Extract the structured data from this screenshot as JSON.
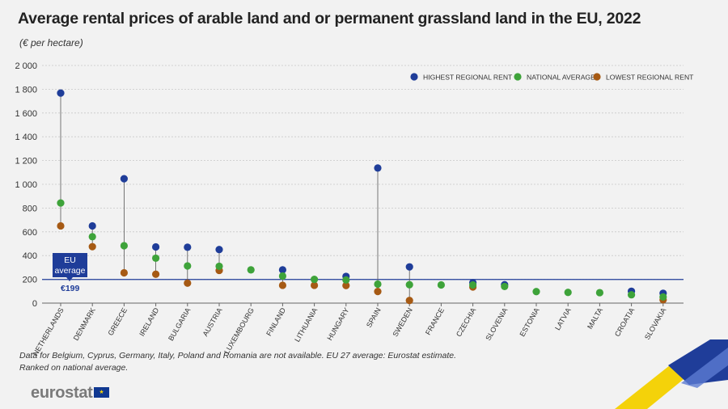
{
  "title": "Average rental prices of arable land and or permanent grassland land in the EU, 2022",
  "subtitle": "(€ per hectare)",
  "footnote_lines": [
    "Data for Belgium, Cyprus, Germany, Italy, Poland and Romania are not available. EU 27 average: Eurostat estimate.",
    "Ranked on national average."
  ],
  "logo": {
    "text": "eurostat",
    "flag_icon": "eu-flag-icon"
  },
  "colors": {
    "highest": "#1f3d99",
    "national": "#3ea33a",
    "lowest": "#a65a14",
    "eu_line": "#1f3d99",
    "eu_box": "#1f3d99"
  },
  "chart_data": {
    "type": "scatter",
    "ylim": [
      0,
      2000
    ],
    "yticks": [
      "0",
      "200",
      "400",
      "600",
      "800",
      "1 000",
      "1 200",
      "1 400",
      "1 600",
      "1 800",
      "2 000"
    ],
    "legend_position": "top-right",
    "grid": true,
    "categories": [
      "NETHERLANDS",
      "DENMARK",
      "GREECE",
      "IRELAND",
      "BULGARIA",
      "AUSTRIA",
      "LUXEMBOURG",
      "FINLAND",
      "LITHUANIA",
      "HUNGARY",
      "SPAIN",
      "SWEDEN",
      "FRANCE",
      "CZECHIA",
      "SLOVENIA",
      "ESTONIA",
      "LATVIA",
      "MALTA",
      "CROATIA",
      "SLOVAKIA"
    ],
    "series": [
      {
        "name": "HIGHEST REGIONAL RENT",
        "key": "highest",
        "values": [
          1768,
          650,
          1047,
          473,
          470,
          451,
          null,
          280,
          null,
          225,
          1137,
          305,
          null,
          172,
          155,
          null,
          null,
          null,
          100,
          83
        ]
      },
      {
        "name": "NATIONAL AVERAGE",
        "key": "national",
        "values": [
          843,
          559,
          483,
          378,
          313,
          310,
          280,
          228,
          200,
          195,
          160,
          155,
          153,
          153,
          140,
          97,
          90,
          88,
          70,
          52
        ]
      },
      {
        "name": "LOWEST REGIONAL RENT",
        "key": "lowest",
        "values": [
          650,
          475,
          255,
          243,
          168,
          275,
          null,
          150,
          150,
          148,
          98,
          22,
          null,
          136,
          null,
          null,
          null,
          null,
          null,
          28
        ]
      }
    ],
    "eu_average": {
      "value": 199,
      "label_lines": [
        "EU",
        "average"
      ],
      "value_label": "€199"
    }
  }
}
